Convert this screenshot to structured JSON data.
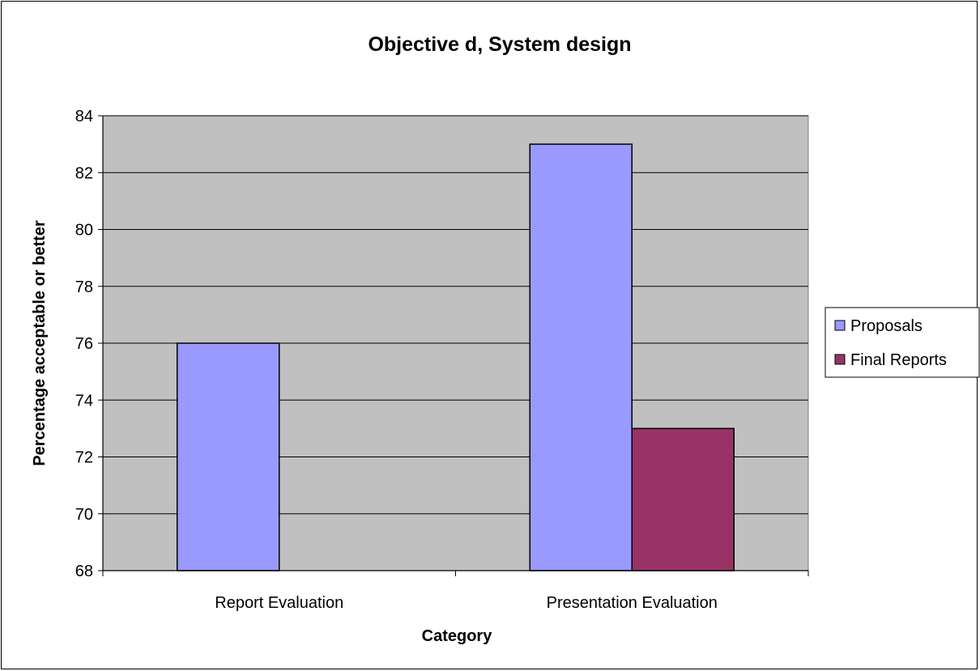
{
  "chart_data": {
    "type": "bar",
    "title": "Objective d, System design",
    "xlabel": "Category",
    "ylabel": "Percentage acceptable or better",
    "categories": [
      "Report Evaluation",
      "Presentation Evaluation"
    ],
    "series": [
      {
        "name": "Proposals",
        "values": [
          76,
          83
        ],
        "color": "#9999ff"
      },
      {
        "name": "Final Reports",
        "values": [
          null,
          73
        ],
        "color": "#993366"
      }
    ],
    "ylim": [
      68,
      84
    ],
    "yticks": [
      68,
      70,
      72,
      74,
      76,
      78,
      80,
      82,
      84
    ],
    "grid": true,
    "plot_background": "#c0c0c0",
    "legend_position": "right"
  }
}
